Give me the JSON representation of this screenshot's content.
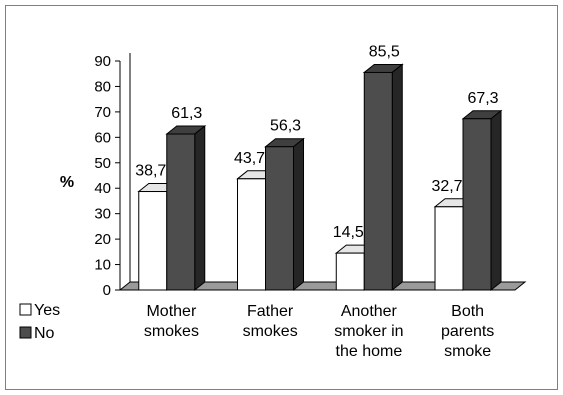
{
  "chart_data": {
    "type": "bar",
    "categories": [
      [
        "Mother",
        "smokes"
      ],
      [
        "Father",
        "smokes"
      ],
      [
        "Another",
        "smoker in",
        "the home"
      ],
      [
        "Both",
        "parents",
        "smoke"
      ]
    ],
    "series": [
      {
        "name": "Yes",
        "values": [
          38.7,
          43.7,
          14.5,
          32.7
        ],
        "labels": [
          "38,7",
          "43,7",
          "14,5",
          "32,7"
        ],
        "color": "#ffffff"
      },
      {
        "name": "No",
        "values": [
          61.3,
          56.3,
          85.5,
          67.3
        ],
        "labels": [
          "61,3",
          "56,3",
          "85,5",
          "67,3"
        ],
        "color": "#4d4d4d"
      }
    ],
    "title": "",
    "xlabel": "",
    "ylabel": "%",
    "ylim": [
      0,
      90
    ],
    "yticks": [
      0,
      10,
      20,
      30,
      40,
      50,
      60,
      70,
      80,
      90
    ],
    "grid": false,
    "legend_position": "bottom-left",
    "style": "3d-column"
  }
}
